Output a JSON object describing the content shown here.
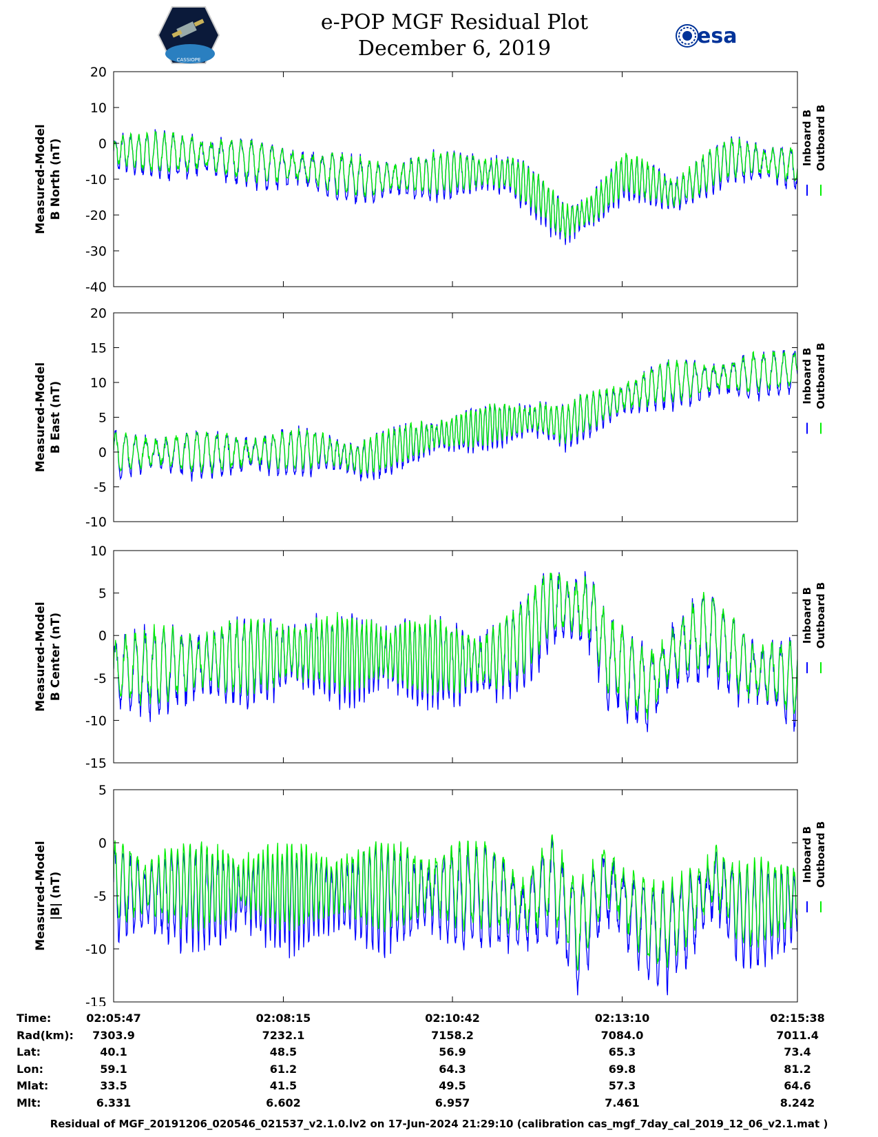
{
  "header": {
    "title_line1": "e-POP MGF Residual Plot",
    "title_line2": "December 6, 2019",
    "logo_left_text": "CASSIOPE",
    "logo_right_text": "esa"
  },
  "colors": {
    "inboard": "#0000ff",
    "outboard": "#00ee00",
    "axis": "#000000"
  },
  "chart_data": [
    {
      "type": "line",
      "ylabel_line1": "Measured-Model",
      "ylabel_line2": "B North (nT)",
      "ylim": [
        -40,
        20
      ],
      "yticks": [
        -40,
        -30,
        -20,
        -10,
        0,
        10,
        20
      ],
      "legend": [
        "Inboard B",
        "Outboard B"
      ],
      "legend_placement": "right",
      "grid": false,
      "trend_x": [
        0,
        0.12,
        0.25,
        0.38,
        0.5,
        0.58,
        0.62,
        0.66,
        0.7,
        0.75,
        0.82,
        0.9,
        1.0
      ],
      "trend_y": [
        -2,
        -3,
        -6,
        -10,
        -8,
        -8,
        -14,
        -22,
        -18,
        -8,
        -14,
        -4,
        -6
      ],
      "osc_amp": 7
    },
    {
      "type": "line",
      "ylabel_line1": "Measured-Model",
      "ylabel_line2": "B East (nT)",
      "ylim": [
        -10,
        20
      ],
      "yticks": [
        -10,
        -5,
        0,
        5,
        10,
        15,
        20
      ],
      "legend": [
        "Inboard B",
        "Outboard B"
      ],
      "legend_placement": "right",
      "grid": false,
      "trend_x": [
        0,
        0.2,
        0.3,
        0.36,
        0.45,
        0.55,
        0.62,
        0.66,
        0.7,
        0.75,
        0.8,
        0.9,
        1.0
      ],
      "trend_y": [
        0,
        0,
        0.5,
        -1,
        2,
        4,
        5,
        4,
        6,
        8,
        10,
        11,
        12
      ],
      "osc_amp": 3.5
    },
    {
      "type": "line",
      "ylabel_line1": "Measured-Model",
      "ylabel_line2": "B Center (nT)",
      "ylim": [
        -15,
        10
      ],
      "yticks": [
        -15,
        -10,
        -5,
        0,
        5
      ],
      "tick_labels_extra": [
        "10"
      ],
      "legend": [
        "Inboard B",
        "Outboard B"
      ],
      "legend_placement": "right",
      "grid": false,
      "trend_x": [
        0,
        0.25,
        0.4,
        0.55,
        0.6,
        0.64,
        0.7,
        0.72,
        0.78,
        0.82,
        0.87,
        0.93,
        1.0
      ],
      "trend_y": [
        -4,
        -2,
        -2,
        -3,
        0,
        4,
        3,
        -2,
        -6,
        -2,
        1,
        -4,
        -5
      ],
      "osc_amp": 5.5
    },
    {
      "type": "line",
      "ylabel_line1": "Measured-Model",
      "ylabel_line2": "|B| (nT)",
      "ylim": [
        -15,
        5
      ],
      "yticks": [
        -15,
        -10,
        -5,
        0,
        5
      ],
      "legend": [
        "Inboard B",
        "Outboard B"
      ],
      "legend_placement": "right",
      "grid": false,
      "trend_x": [
        0,
        0.3,
        0.55,
        0.6,
        0.64,
        0.68,
        0.72,
        0.76,
        0.8,
        0.84,
        0.88,
        0.92,
        1.0
      ],
      "trend_y": [
        -4,
        -4,
        -4,
        -6,
        -3,
        -8,
        -3,
        -6,
        -8,
        -6,
        -3,
        -6,
        -5
      ],
      "osc_amp": 5
    }
  ],
  "info_table": {
    "rows": [
      {
        "label": "Time:",
        "values": [
          "02:05:47",
          "02:08:15",
          "02:10:42",
          "02:13:10",
          "02:15:38"
        ]
      },
      {
        "label": "Rad(km):",
        "values": [
          "7303.9",
          "7232.1",
          "7158.2",
          "7084.0",
          "7011.4"
        ]
      },
      {
        "label": "Lat:",
        "values": [
          "40.1",
          "48.5",
          "56.9",
          "65.3",
          "73.4"
        ]
      },
      {
        "label": "Lon:",
        "values": [
          "59.1",
          "61.2",
          "64.3",
          "69.8",
          "81.2"
        ]
      },
      {
        "label": "Mlat:",
        "values": [
          "33.5",
          "41.5",
          "49.5",
          "57.3",
          "64.6"
        ]
      },
      {
        "label": "Mlt:",
        "values": [
          "6.331",
          "6.602",
          "6.957",
          "7.461",
          "8.242"
        ]
      }
    ]
  },
  "footer": "Residual of MGF_20191206_020546_021537_v2.1.0.lv2 on 17-Jun-2024 21:29:10 (calibration cas_mgf_7day_cal_2019_12_06_v2.1.mat )"
}
